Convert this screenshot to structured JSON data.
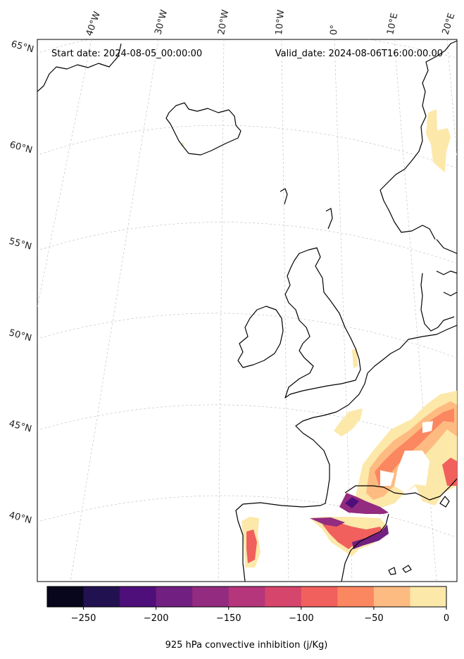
{
  "map": {
    "start_date": "Start date: 2024-08-05_00:00:00",
    "valid_date": "Valid_date: 2024-08-06T16:00:00.00",
    "longitude_labels": [
      "40°W",
      "30°W",
      "20°W",
      "10°W",
      "0°",
      "10°E",
      "20°E"
    ],
    "latitude_labels": [
      "65°N",
      "60°N",
      "55°N",
      "50°N",
      "45°N",
      "40°N"
    ],
    "colorbar": {
      "label": "925 hPa convective inhibition (j/Kg)",
      "tick_labels": [
        "−250",
        "−200",
        "−150",
        "−100",
        "−50",
        "0"
      ],
      "colors": [
        "#07061c",
        "#221150",
        "#4f0f7a",
        "#711f81",
        "#932b80",
        "#b5367a",
        "#d6456c",
        "#f1605d",
        "#fb8761",
        "#febb81",
        "#fce8a9"
      ]
    }
  },
  "chart_data": {
    "type": "heatmap",
    "variable": "925 hPa convective inhibition",
    "units": "j/Kg",
    "color_levels": [
      -275,
      -250,
      -225,
      -200,
      -175,
      -150,
      -125,
      -100,
      -75,
      -50,
      -25,
      0
    ],
    "colormap": "magma",
    "extent_lon": [
      -40,
      20
    ],
    "extent_lat": [
      36,
      66
    ]
  }
}
